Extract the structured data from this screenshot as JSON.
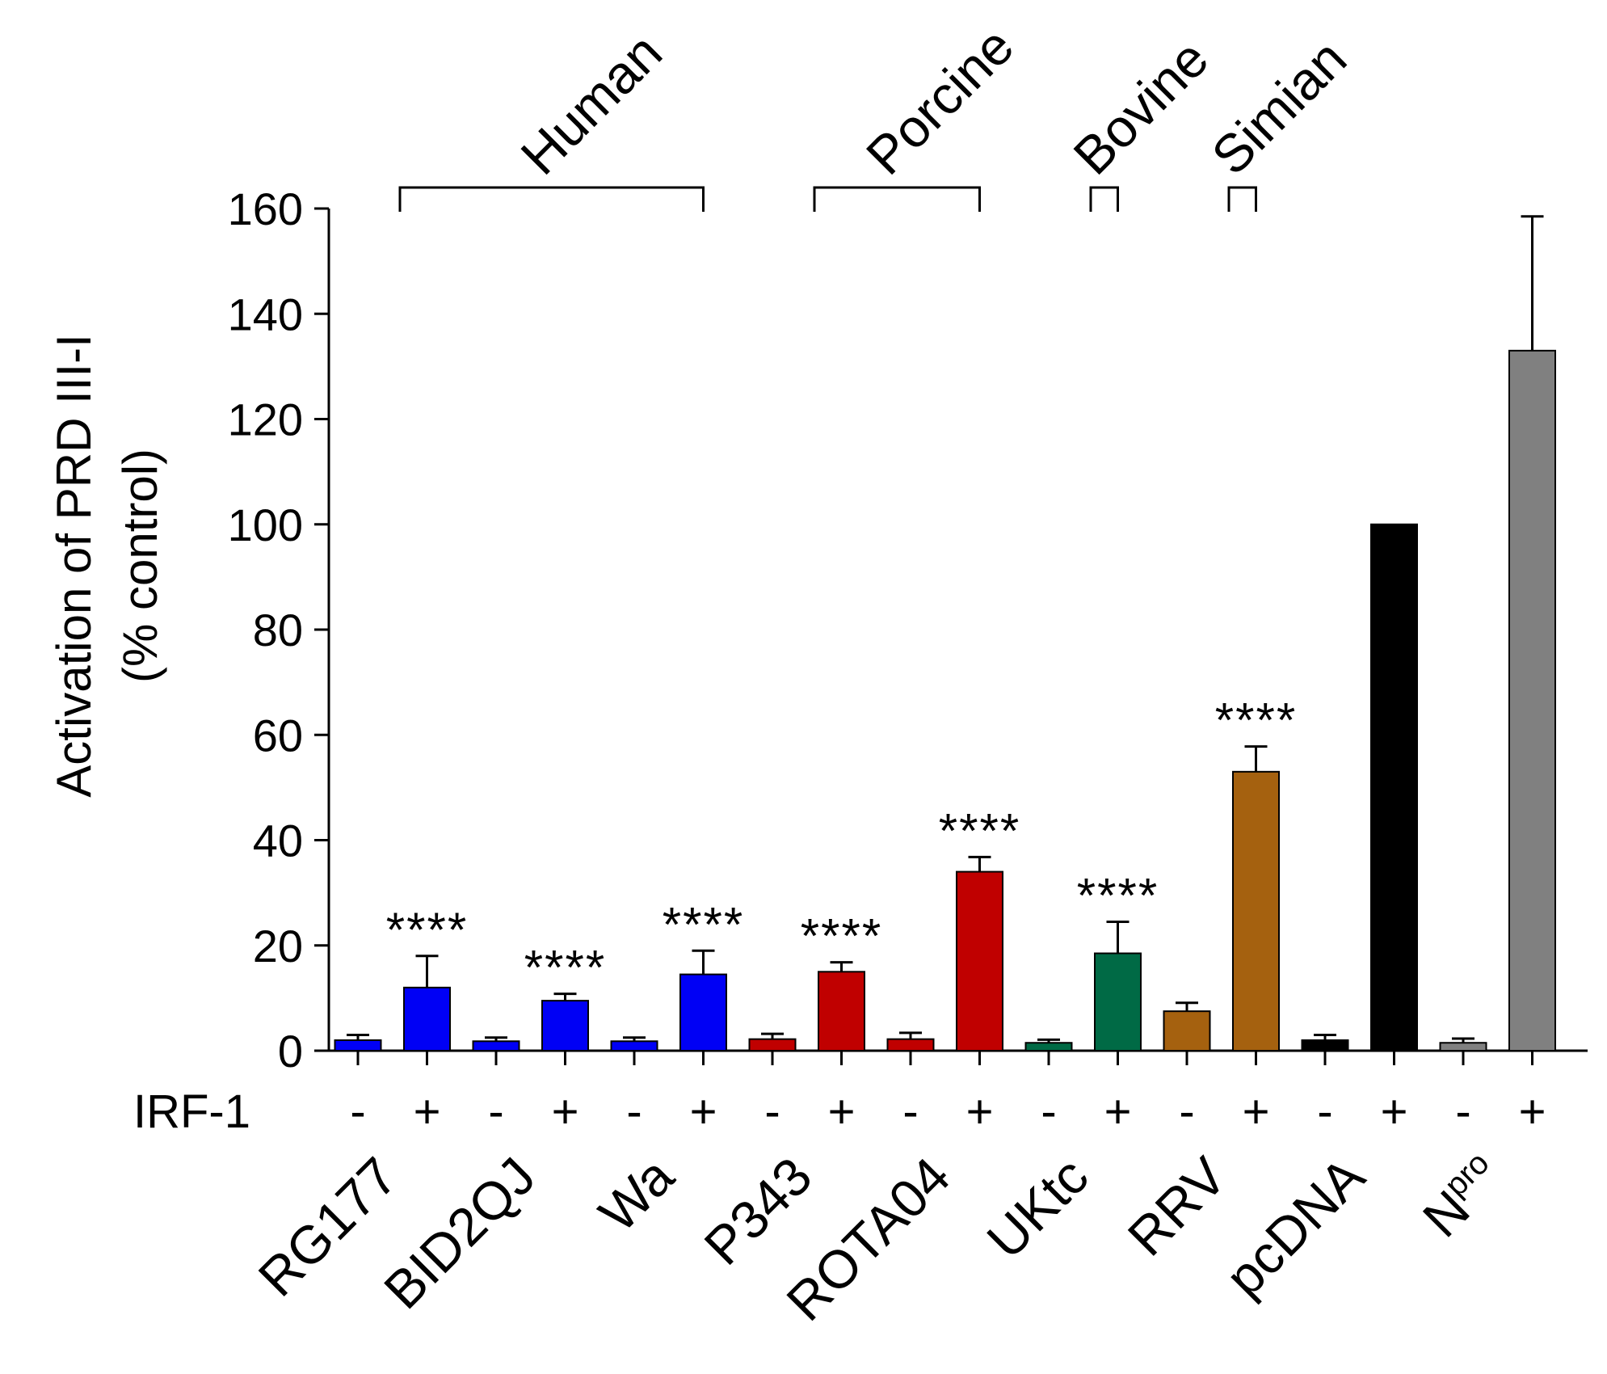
{
  "chart_data": {
    "type": "bar",
    "title": "",
    "xlabel": "",
    "ylabel_line1": "Activation of PRD III-I",
    "ylabel_line2": "(% control)",
    "ylim": [
      0,
      160
    ],
    "yticks": [
      0,
      20,
      40,
      60,
      80,
      100,
      120,
      140,
      160
    ],
    "irf_label": "IRF-1",
    "colors": {
      "human": "#0000f5",
      "porcine": "#c00000",
      "bovine": "#006a45",
      "simian": "#a5610f",
      "pcdna": "#000000",
      "npro": "#808080"
    },
    "samples": [
      {
        "name": "RG177",
        "species": "human"
      },
      {
        "name": "BID2QJ",
        "species": "human"
      },
      {
        "name": "Wa",
        "species": "human"
      },
      {
        "name": "P343",
        "species": "porcine"
      },
      {
        "name": "ROTA04",
        "species": "porcine"
      },
      {
        "name": "UKtc",
        "species": "bovine"
      },
      {
        "name": "RRV",
        "species": "simian"
      },
      {
        "name": "pcDNA",
        "species": "pcdna"
      },
      {
        "name": "N",
        "superscript": "pro",
        "species": "npro"
      }
    ],
    "bars": [
      {
        "sample": "RG177",
        "irf": "-",
        "value": 2,
        "error": 1,
        "sig": ""
      },
      {
        "sample": "RG177",
        "irf": "+",
        "value": 12,
        "error": 6,
        "sig": "****"
      },
      {
        "sample": "BID2QJ",
        "irf": "-",
        "value": 1.8,
        "error": 0.7,
        "sig": ""
      },
      {
        "sample": "BID2QJ",
        "irf": "+",
        "value": 9.5,
        "error": 1.3,
        "sig": "****"
      },
      {
        "sample": "Wa",
        "irf": "-",
        "value": 1.8,
        "error": 0.7,
        "sig": ""
      },
      {
        "sample": "Wa",
        "irf": "+",
        "value": 14.5,
        "error": 4.5,
        "sig": "****"
      },
      {
        "sample": "P343",
        "irf": "-",
        "value": 2.2,
        "error": 1,
        "sig": ""
      },
      {
        "sample": "P343",
        "irf": "+",
        "value": 15,
        "error": 1.8,
        "sig": "****"
      },
      {
        "sample": "ROTA04",
        "irf": "-",
        "value": 2.2,
        "error": 1.2,
        "sig": ""
      },
      {
        "sample": "ROTA04",
        "irf": "+",
        "value": 34,
        "error": 2.8,
        "sig": "****"
      },
      {
        "sample": "UKtc",
        "irf": "-",
        "value": 1.5,
        "error": 0.6,
        "sig": ""
      },
      {
        "sample": "UKtc",
        "irf": "+",
        "value": 18.5,
        "error": 6,
        "sig": "****"
      },
      {
        "sample": "RRV",
        "irf": "-",
        "value": 7.5,
        "error": 1.6,
        "sig": ""
      },
      {
        "sample": "RRV",
        "irf": "+",
        "value": 53,
        "error": 4.8,
        "sig": "****"
      },
      {
        "sample": "pcDNA",
        "irf": "-",
        "value": 2,
        "error": 1,
        "sig": ""
      },
      {
        "sample": "pcDNA",
        "irf": "+",
        "value": 100,
        "error": 0,
        "sig": ""
      },
      {
        "sample": "N",
        "irf": "-",
        "value": 1.5,
        "error": 0.8,
        "sig": ""
      },
      {
        "sample": "N",
        "irf": "+",
        "value": 133,
        "error": 25.5,
        "sig": ""
      }
    ],
    "groups": [
      {
        "label": "Human",
        "from_bar": 0,
        "to_bar": 5
      },
      {
        "label": "Porcine",
        "from_bar": 6,
        "to_bar": 9
      },
      {
        "label": "Bovine",
        "from_bar": 10,
        "to_bar": 11
      },
      {
        "label": "Simian",
        "from_bar": 12,
        "to_bar": 13
      }
    ]
  }
}
